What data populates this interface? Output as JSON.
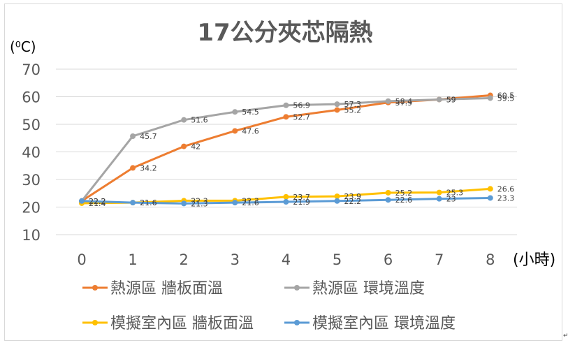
{
  "chart_data": {
    "type": "line",
    "title": "17公分夾芯隔熱",
    "ylabel": "(⁰C)",
    "xlabel": "(小時)",
    "categories": [
      "0",
      "1",
      "2",
      "3",
      "4",
      "5",
      "6",
      "7",
      "8"
    ],
    "ylim": [
      10,
      70
    ],
    "yticks": [
      "10",
      "20",
      "30",
      "40",
      "50",
      "60",
      "70"
    ],
    "grid": true,
    "legend_position": "bottom",
    "series": [
      {
        "name": "熱源區 牆板面溫",
        "color": "#ED7D31",
        "values": [
          22.2,
          34.2,
          42,
          47.6,
          52.7,
          55.2,
          57.9,
          59,
          60.5
        ],
        "labels": [
          "22.2",
          "34.2",
          "42",
          "47.6",
          "52.7",
          "55.2",
          "57.9",
          "59",
          "60.5"
        ]
      },
      {
        "name": "熱源區 環境溫度",
        "color": "#A5A5A5",
        "values": [
          22.2,
          45.7,
          51.6,
          54.5,
          56.9,
          57.3,
          58.4,
          59,
          59.5
        ],
        "labels": [
          "22.2",
          "45.7",
          "51.6",
          "54.5",
          "56.9",
          "57.3",
          "58.4",
          "59",
          "59.5"
        ]
      },
      {
        "name": "模擬室內區 牆板面溫",
        "color": "#FFC000",
        "values": [
          21.4,
          21.6,
          22.3,
          22.3,
          23.7,
          23.9,
          25.2,
          25.3,
          26.6
        ],
        "labels": [
          "21.4",
          "21.6",
          "22.3",
          "22.3",
          "23.7",
          "23.9",
          "25.2",
          "25.3",
          "26.6"
        ]
      },
      {
        "name": "模擬室內區 環境溫度",
        "color": "#5B9BD5",
        "values": [
          22.2,
          21.6,
          21.3,
          21.6,
          21.9,
          22.2,
          22.6,
          23,
          23.3
        ],
        "labels": [
          "22.2",
          "21.6",
          "21.3",
          "21.6",
          "21.9",
          "22.2",
          "22.6",
          "23",
          "23.3"
        ]
      }
    ]
  },
  "corner_mark": "↵"
}
